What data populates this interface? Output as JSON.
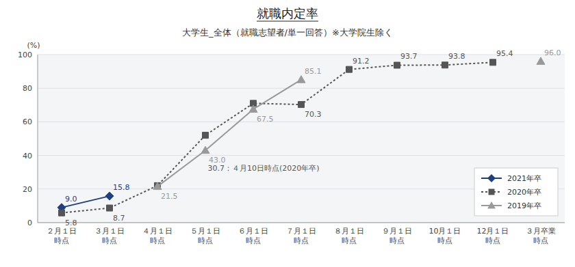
{
  "chart_data": {
    "type": "line",
    "title": "就職内定率",
    "subtitle": "大学生_全体（就職志望者/単一回答）※大学院生除く",
    "y_label": "(%)",
    "categories": [
      "２月１日\n時点",
      "３月１日\n時点",
      "４月１日\n時点",
      "５月１日\n時点",
      "６月１日\n時点",
      "７月１日\n時点",
      "８月１日\n時点",
      "９月１日\n時点",
      "10月１日\n時点",
      "12月１日\n時点",
      "３月卒業\n時点"
    ],
    "series": [
      {
        "name": "2021年卒",
        "color": "#1f3f7f",
        "marker": "diamond",
        "line_style": "solid",
        "values": [
          9.0,
          15.8,
          null,
          null,
          null,
          null,
          null,
          null,
          null,
          null,
          null
        ],
        "value_labels": [
          "9.0",
          "15.8",
          null,
          null,
          null,
          null,
          null,
          null,
          null,
          null,
          null
        ]
      },
      {
        "name": "2020年卒",
        "color": "#555555",
        "marker": "square",
        "line_style": "dotted",
        "values": [
          5.8,
          8.7,
          22.0,
          52.0,
          71.0,
          70.3,
          91.2,
          93.7,
          93.8,
          95.4,
          null
        ],
        "value_labels": [
          "5.8",
          "8.7",
          null,
          null,
          null,
          "70.3",
          "91.2",
          "93.7",
          "93.8",
          "95.4",
          null
        ]
      },
      {
        "name": "2019年卒",
        "color": "#999999",
        "marker": "triangle",
        "line_style": "solid",
        "values": [
          null,
          null,
          21.5,
          43.0,
          67.5,
          85.1,
          null,
          null,
          null,
          null,
          96.0
        ],
        "value_labels": [
          null,
          null,
          "21.5",
          "43.0",
          "67.5",
          "85.1",
          null,
          null,
          null,
          null,
          "96.0"
        ]
      }
    ],
    "annotations": [
      {
        "text": "30.7：４月10日時点(2020年卒)",
        "x": 3.05,
        "y": 30.7
      }
    ],
    "ylim": [
      0,
      100
    ],
    "yticks": [
      0,
      20,
      40,
      60,
      80,
      100
    ],
    "grid": true,
    "legend": "lower right",
    "data_labels": true
  }
}
